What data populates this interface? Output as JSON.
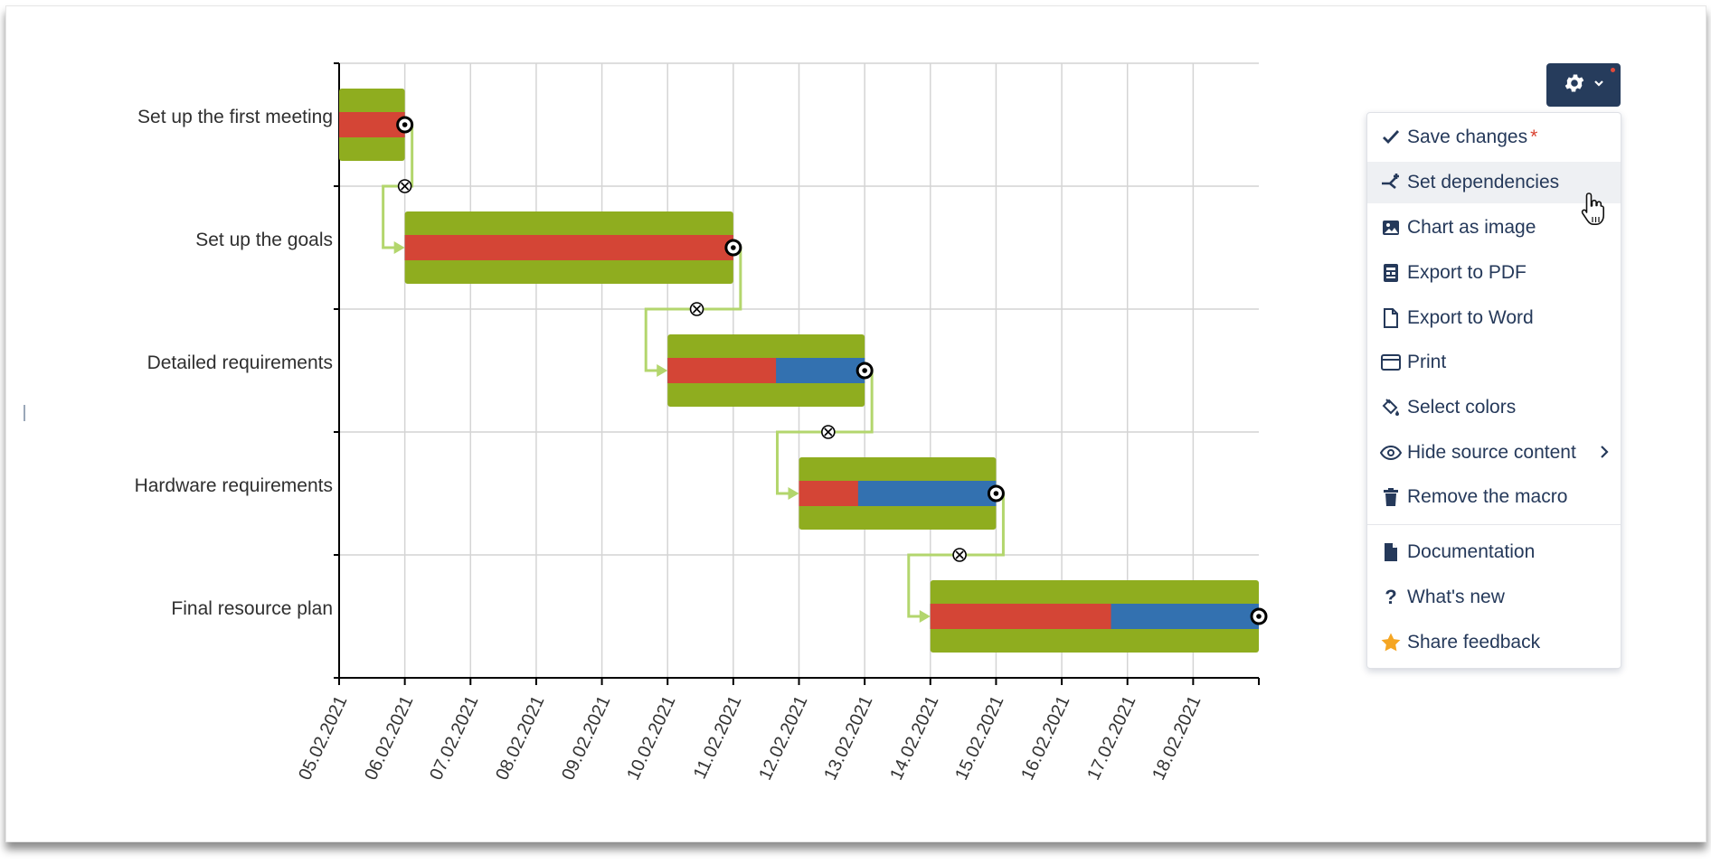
{
  "colors": {
    "plan_bar": "#8fad1f",
    "actual_bar": "#d44536",
    "remaining_bar": "#3371b0",
    "connector": "#b3d66d",
    "grid": "#d4d4d4",
    "menu_text": "#25395a",
    "gear_button": "#263c5c",
    "star": "#f5a623"
  },
  "chart_data": {
    "type": "gantt",
    "x_axis": {
      "tick_labels": [
        "05.02.2021",
        "06.02.2021",
        "07.02.2021",
        "08.02.2021",
        "09.02.2021",
        "10.02.2021",
        "11.02.2021",
        "12.02.2021",
        "13.02.2021",
        "14.02.2021",
        "15.02.2021",
        "16.02.2021",
        "17.02.2021",
        "18.02.2021"
      ],
      "range": [
        "05.02.2021",
        "19.02.2021"
      ],
      "grid": true
    },
    "tasks": [
      {
        "name": "Set up the first meeting",
        "start": "05.02.2021",
        "end": "06.02.2021",
        "progress": 1.0,
        "milestone": "06.02.2021"
      },
      {
        "name": "Set up the goals",
        "start": "06.02.2021",
        "end": "11.02.2021",
        "progress": 1.0,
        "milestone": "11.02.2021"
      },
      {
        "name": "Detailed requirements",
        "start": "10.02.2021",
        "end": "13.02.2021",
        "progress": 0.55,
        "milestone": "13.02.2021"
      },
      {
        "name": "Hardware requirements",
        "start": "12.02.2021",
        "end": "15.02.2021",
        "progress": 0.3,
        "milestone": "15.02.2021"
      },
      {
        "name": "Final resource plan",
        "start": "14.02.2021",
        "end": "19.02.2021",
        "progress": 0.55,
        "milestone": "19.02.2021"
      }
    ],
    "dependencies": [
      {
        "from": "Set up the first meeting",
        "to": "Set up the goals"
      },
      {
        "from": "Set up the goals",
        "to": "Detailed requirements"
      },
      {
        "from": "Detailed requirements",
        "to": "Hardware requirements"
      },
      {
        "from": "Hardware requirements",
        "to": "Final resource plan"
      }
    ]
  },
  "toolbar": {
    "gear_icon": "gear-icon",
    "chevron_icon": "chevron-down-icon"
  },
  "menu": {
    "items": [
      {
        "label": "Save changes",
        "icon": "check-icon",
        "required_mark": "*"
      },
      {
        "label": "Set dependencies",
        "icon": "dependencies-icon",
        "highlighted": true
      },
      {
        "label": "Chart as image",
        "icon": "image-icon"
      },
      {
        "label": "Export to PDF",
        "icon": "pdf-icon"
      },
      {
        "label": "Export to Word",
        "icon": "word-file-icon"
      },
      {
        "label": "Print",
        "icon": "print-icon"
      },
      {
        "label": "Select colors",
        "icon": "paint-bucket-icon"
      },
      {
        "label": "Hide source content",
        "icon": "eye-icon",
        "submenu": true
      },
      {
        "label": "Remove the macro",
        "icon": "trash-icon"
      },
      {
        "label": "Documentation",
        "icon": "document-icon"
      },
      {
        "label": "What's new",
        "icon": "question-icon"
      },
      {
        "label": "Share feedback",
        "icon": "star-icon"
      }
    ]
  }
}
